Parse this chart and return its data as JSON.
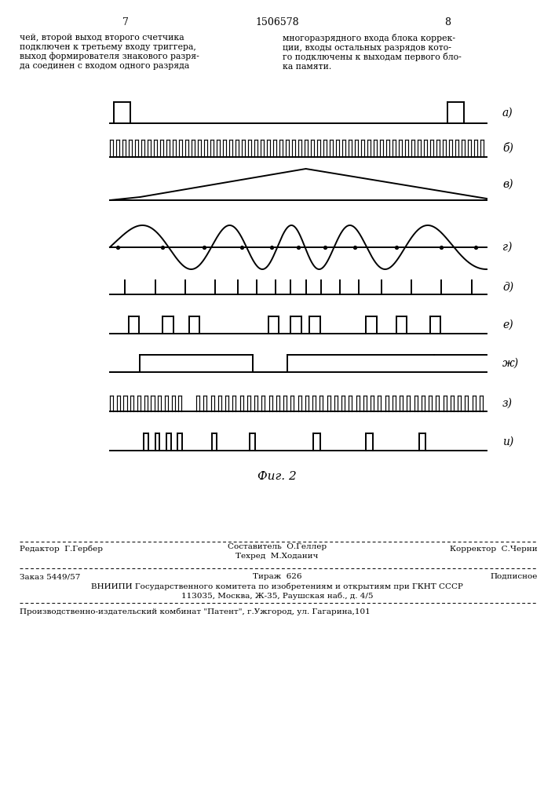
{
  "bg_color": "#ffffff",
  "line_color": "#000000",
  "page_number_left": "7",
  "page_number_center": "1506578",
  "page_number_right": "8",
  "header_text_left": "чей, второй выход второго счетчика\nподключен к третьему входу триггера,\nвыход формирователя знакового разря-\nда соединен с входом одного разряда",
  "header_text_right": "многоразрядного входа блока коррек-\nции, входы остальных разрядов кото-\nго подключены к выходам первого бло-\nка памяти.",
  "label_a": "а)",
  "label_b": "б)",
  "label_v": "в)",
  "label_g": "г)",
  "label_d": "д)",
  "label_e": "е)",
  "label_zh": "ж)",
  "label_z": "з)",
  "label_ts": "и)",
  "fig_caption": "Фиг. 2",
  "footer_line1_left": "Редактор  Г.Гербер",
  "footer_line1_center_top": "Составитель  О.Геллер",
  "footer_line1_center_bot": "Техред  М.Ходанич",
  "footer_line1_right": "Корректор  С.Черни",
  "footer_line2_left": "Заказ 5449/57",
  "footer_line2_center": "Тираж  626",
  "footer_line2_right": "Подписное",
  "footer_line3": "ВНИИПИ Государственного комитета по изобретениям и открытиям при ГКНТ СССР",
  "footer_line4": "113035, Москва, Ж-35, Раушская наб., д. 4/5",
  "footer_line5": "Производственно-издательский комбинат \"Патент\", г.Ужгород, ул. Гагарина,101"
}
